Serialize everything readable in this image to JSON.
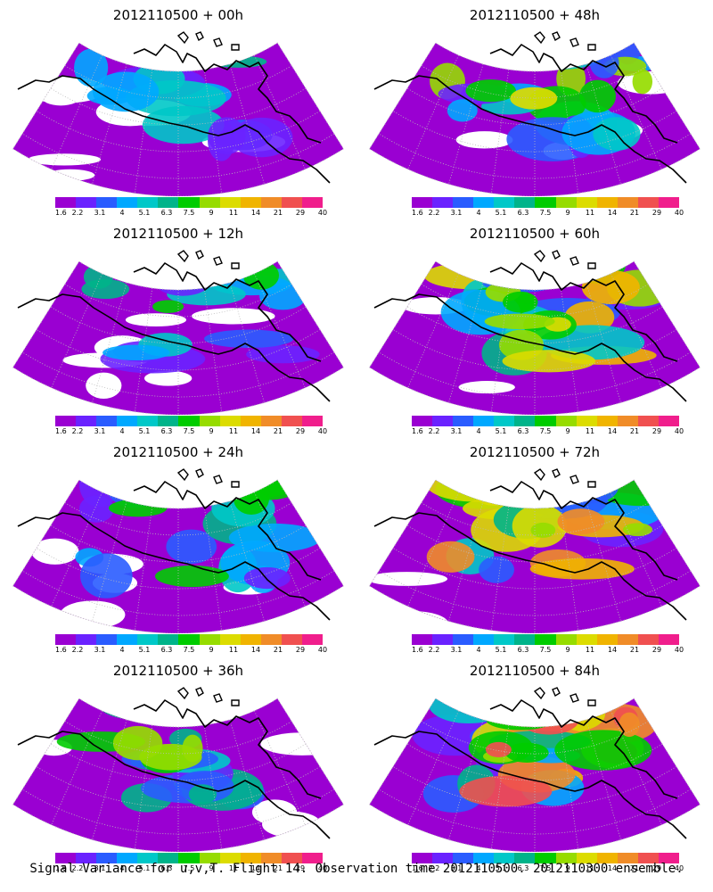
{
  "panels": [
    {
      "title": "2012110500 + 00h",
      "level": 0.15
    },
    {
      "title": "2012110500 + 48h",
      "level": 0.55
    },
    {
      "title": "2012110500 + 12h",
      "level": 0.25
    },
    {
      "title": "2012110500 + 60h",
      "level": 0.65
    },
    {
      "title": "2012110500 + 24h",
      "level": 0.35
    },
    {
      "title": "2012110500 + 72h",
      "level": 0.75
    },
    {
      "title": "2012110500 + 36h",
      "level": 0.45
    },
    {
      "title": "2012110500 + 84h",
      "level": 0.85
    }
  ],
  "colorbar": {
    "tick_labels": [
      "1.6",
      "2.2",
      "3.1",
      "4",
      "5.1",
      "6.3",
      "7.5",
      "9",
      "11",
      "14",
      "21",
      "29",
      "40"
    ],
    "colors": [
      "#9a00d2",
      "#6a22ff",
      "#2a5cff",
      "#00a8ff",
      "#00c8c8",
      "#00b48a",
      "#00cc00",
      "#96dc00",
      "#dcdc00",
      "#f0b400",
      "#f08c28",
      "#f05050",
      "#f01e8c"
    ]
  },
  "caption": "Signal Variance for u,v,T. Flight 14. Observation time 2012110500. 2012110300 ensemble."
}
